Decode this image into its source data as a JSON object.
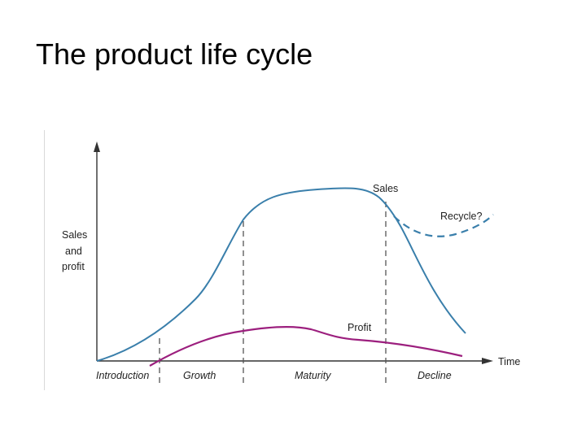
{
  "title": "The product life cycle",
  "y_axis_label": [
    "Sales",
    "and",
    "profit"
  ],
  "x_axis_label": "Time",
  "curve_labels": {
    "sales": "Sales",
    "profit": "Profit",
    "recycle": "Recycle?"
  },
  "stages": [
    "Introduction",
    "Growth",
    "Maturity",
    "Decline"
  ],
  "colors": {
    "sales": "#3a7fab",
    "profit": "#9c1f7e",
    "axis": "#333333",
    "stage_divider": "#555555"
  }
}
